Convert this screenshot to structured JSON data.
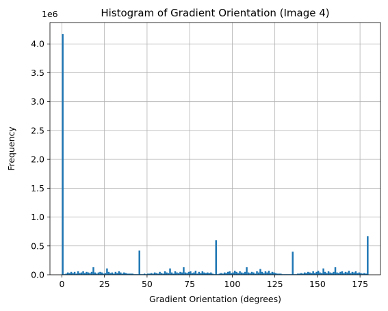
{
  "chart_data": {
    "type": "bar",
    "title": "Histogram of Gradient Orientation (Image 4)",
    "xlabel": "Gradient Orientation (degrees)",
    "ylabel": "Frequency",
    "y_offset_label": "1e6",
    "xlim": [
      -7,
      187
    ],
    "ylim": [
      0,
      4.37
    ],
    "x_ticks": [
      0,
      25,
      50,
      75,
      100,
      125,
      150,
      175
    ],
    "x_tick_labels": [
      "0",
      "25",
      "50",
      "75",
      "100",
      "125",
      "150",
      "175"
    ],
    "y_ticks": [
      0,
      0.5,
      1.0,
      1.5,
      2.0,
      2.5,
      3.0,
      3.5,
      4.0
    ],
    "y_tick_labels": [
      "0.0",
      "0.5",
      "1.0",
      "1.5",
      "2.0",
      "2.5",
      "3.0",
      "3.5",
      "4.0"
    ],
    "grid": true,
    "bar_color": "#1f77b4",
    "bin_width": 1,
    "series": [
      {
        "bin_starts": [
          0,
          1,
          2,
          3,
          4,
          5,
          6,
          7,
          8,
          9,
          10,
          11,
          12,
          13,
          14,
          15,
          16,
          17,
          18,
          19,
          20,
          21,
          22,
          23,
          24,
          25,
          26,
          27,
          28,
          29,
          30,
          31,
          32,
          33,
          34,
          35,
          36,
          37,
          38,
          39,
          40,
          41,
          42,
          43,
          44,
          45,
          46,
          47,
          48,
          49,
          50,
          51,
          52,
          53,
          54,
          55,
          56,
          57,
          58,
          59,
          60,
          61,
          62,
          63,
          64,
          65,
          66,
          67,
          68,
          69,
          70,
          71,
          72,
          73,
          74,
          75,
          76,
          77,
          78,
          79,
          80,
          81,
          82,
          83,
          84,
          85,
          86,
          87,
          88,
          89,
          90,
          91,
          92,
          93,
          94,
          95,
          96,
          97,
          98,
          99,
          100,
          101,
          102,
          103,
          104,
          105,
          106,
          107,
          108,
          109,
          110,
          111,
          112,
          113,
          114,
          115,
          116,
          117,
          118,
          119,
          120,
          121,
          122,
          123,
          124,
          125,
          126,
          127,
          128,
          129,
          130,
          131,
          132,
          133,
          134,
          135,
          136,
          137,
          138,
          139,
          140,
          141,
          142,
          143,
          144,
          145,
          146,
          147,
          148,
          149,
          150,
          151,
          152,
          153,
          154,
          155,
          156,
          157,
          158,
          159,
          160,
          161,
          162,
          163,
          164,
          165,
          166,
          167,
          168,
          169,
          170,
          171,
          172,
          173,
          174,
          175,
          176,
          177,
          178,
          179
        ],
        "values": [
          4.17,
          0.01,
          0.02,
          0.04,
          0.03,
          0.05,
          0.03,
          0.05,
          0.02,
          0.06,
          0.03,
          0.04,
          0.06,
          0.03,
          0.05,
          0.04,
          0.03,
          0.05,
          0.13,
          0.04,
          0.02,
          0.04,
          0.05,
          0.04,
          0.02,
          0.03,
          0.11,
          0.05,
          0.03,
          0.04,
          0.02,
          0.05,
          0.03,
          0.06,
          0.04,
          0.02,
          0.04,
          0.03,
          0.02,
          0.02,
          0.02,
          0.02,
          0.01,
          0.01,
          0.01,
          0.42,
          0.01,
          0.01,
          0.02,
          0.01,
          0.02,
          0.02,
          0.03,
          0.02,
          0.04,
          0.03,
          0.02,
          0.05,
          0.03,
          0.02,
          0.06,
          0.04,
          0.03,
          0.11,
          0.04,
          0.02,
          0.06,
          0.04,
          0.03,
          0.05,
          0.04,
          0.13,
          0.04,
          0.03,
          0.05,
          0.06,
          0.03,
          0.04,
          0.07,
          0.02,
          0.05,
          0.03,
          0.06,
          0.04,
          0.03,
          0.04,
          0.03,
          0.04,
          0.02,
          0.01,
          0.6,
          0.01,
          0.02,
          0.03,
          0.02,
          0.04,
          0.03,
          0.05,
          0.06,
          0.03,
          0.04,
          0.07,
          0.05,
          0.03,
          0.06,
          0.04,
          0.03,
          0.05,
          0.13,
          0.04,
          0.03,
          0.05,
          0.04,
          0.02,
          0.06,
          0.04,
          0.1,
          0.05,
          0.03,
          0.06,
          0.04,
          0.07,
          0.03,
          0.05,
          0.04,
          0.03,
          0.02,
          0.02,
          0.02,
          0.01,
          0.01,
          0.01,
          0.01,
          0.01,
          0.01,
          0.4,
          0.01,
          0.01,
          0.02,
          0.02,
          0.03,
          0.02,
          0.04,
          0.03,
          0.05,
          0.04,
          0.03,
          0.06,
          0.03,
          0.05,
          0.07,
          0.04,
          0.03,
          0.11,
          0.05,
          0.03,
          0.06,
          0.04,
          0.03,
          0.05,
          0.13,
          0.04,
          0.03,
          0.05,
          0.06,
          0.03,
          0.05,
          0.04,
          0.07,
          0.03,
          0.05,
          0.04,
          0.06,
          0.03,
          0.04,
          0.03,
          0.02,
          0.03,
          0.02,
          0.67
        ]
      }
    ]
  }
}
